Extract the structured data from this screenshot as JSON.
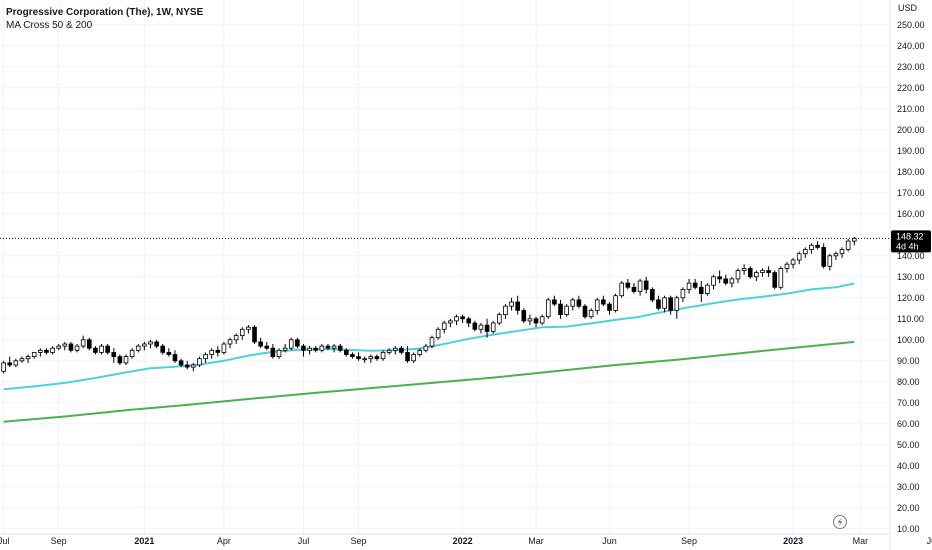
{
  "header": {
    "symbol_title": "Progressive Corporation (The), 1W, NYSE",
    "indicator": "MA Cross 50 & 200"
  },
  "price_axis": {
    "currency": "USD",
    "labels": [
      "250.00",
      "240.00",
      "230.00",
      "220.00",
      "210.00",
      "200.00",
      "190.00",
      "180.00",
      "170.00",
      "160.00",
      "150.00",
      "140.00",
      "130.00",
      "120.00",
      "110.00",
      "100.00",
      "90.00",
      "80.00",
      "70.00",
      "60.00",
      "50.00",
      "40.00",
      "30.00",
      "20.00",
      "10.00"
    ]
  },
  "last_price": {
    "value": "148.32",
    "countdown": "4d 4h",
    "price": 148.32
  },
  "colors": {
    "up_fill": "#ffffff",
    "down_fill": "#000000",
    "candle_border": "#000000",
    "ma50": "#4dd0e1",
    "ma200": "#4caf50",
    "price_tag_bg": "#000000",
    "grid": "#f0f3fa"
  },
  "icons": {
    "bottom_right": "lightning-icon"
  },
  "chart_data": {
    "type": "candlestick",
    "title": "Progressive Corporation (The), 1W, NYSE",
    "interval": "1W",
    "x_axis": {
      "labels": [
        "Jul",
        "Sep",
        "2021",
        "Apr",
        "Jul",
        "Sep",
        "2022",
        "Mar",
        "Jun",
        "Sep",
        "2023",
        "Mar",
        "Jun"
      ],
      "label_weeks": [
        0,
        9,
        23,
        36,
        49,
        58,
        75,
        87,
        99,
        112,
        129,
        140,
        152
      ]
    },
    "ylim": [
      10,
      250
    ],
    "grid": true,
    "series": [
      {
        "type": "candles",
        "ohlc": [
          [
            85,
            90,
            84,
            89
          ],
          [
            89,
            92,
            87,
            88
          ],
          [
            88,
            91,
            87,
            90
          ],
          [
            90,
            92,
            89,
            91
          ],
          [
            91,
            93,
            89,
            92
          ],
          [
            92,
            94,
            91,
            94
          ],
          [
            94,
            96,
            92,
            95
          ],
          [
            95,
            96,
            93,
            94
          ],
          [
            94,
            97,
            93,
            96
          ],
          [
            96,
            98,
            95,
            97
          ],
          [
            97,
            99,
            95,
            98
          ],
          [
            98,
            99,
            94,
            95
          ],
          [
            95,
            98,
            94,
            97
          ],
          [
            97,
            102,
            96,
            100
          ],
          [
            100,
            101,
            95,
            96
          ],
          [
            96,
            97,
            93,
            94
          ],
          [
            94,
            98,
            93,
            97
          ],
          [
            97,
            98,
            93,
            94
          ],
          [
            94,
            96,
            89,
            92
          ],
          [
            92,
            93,
            88,
            89
          ],
          [
            89,
            93,
            88,
            92
          ],
          [
            92,
            96,
            91,
            95
          ],
          [
            95,
            98,
            94,
            97
          ],
          [
            97,
            99,
            95,
            98
          ],
          [
            98,
            100,
            96,
            99
          ],
          [
            99,
            100,
            96,
            97
          ],
          [
            97,
            98,
            93,
            94
          ],
          [
            94,
            96,
            92,
            93
          ],
          [
            93,
            95,
            89,
            90
          ],
          [
            90,
            91,
            87,
            88
          ],
          [
            88,
            90,
            86,
            87
          ],
          [
            87,
            89,
            85,
            88
          ],
          [
            88,
            92,
            87,
            91
          ],
          [
            91,
            94,
            89,
            93
          ],
          [
            93,
            96,
            91,
            95
          ],
          [
            95,
            97,
            92,
            94
          ],
          [
            94,
            99,
            93,
            98
          ],
          [
            98,
            101,
            96,
            100
          ],
          [
            100,
            103,
            98,
            102
          ],
          [
            102,
            106,
            100,
            105
          ],
          [
            105,
            107,
            103,
            106
          ],
          [
            106,
            107,
            98,
            99
          ],
          [
            99,
            101,
            96,
            97
          ],
          [
            97,
            99,
            95,
            96
          ],
          [
            96,
            98,
            91,
            92
          ],
          [
            92,
            96,
            91,
            95
          ],
          [
            95,
            98,
            94,
            96
          ],
          [
            96,
            101,
            95,
            100
          ],
          [
            100,
            101,
            96,
            97
          ],
          [
            97,
            98,
            92,
            95
          ],
          [
            95,
            97,
            93,
            96
          ],
          [
            96,
            97,
            94,
            95
          ],
          [
            95,
            98,
            94,
            97
          ],
          [
            97,
            98,
            95,
            96
          ],
          [
            96,
            98,
            94,
            97
          ],
          [
            97,
            98,
            94,
            95
          ],
          [
            95,
            96,
            92,
            93
          ],
          [
            93,
            94,
            91,
            92
          ],
          [
            92,
            94,
            90,
            91
          ],
          [
            91,
            92,
            89,
            91
          ],
          [
            91,
            93,
            89,
            92
          ],
          [
            92,
            93,
            90,
            91
          ],
          [
            91,
            95,
            90,
            94
          ],
          [
            94,
            96,
            93,
            95
          ],
          [
            95,
            97,
            93,
            96
          ],
          [
            96,
            97,
            93,
            94
          ],
          [
            94,
            97,
            89,
            90
          ],
          [
            90,
            94,
            89,
            93
          ],
          [
            93,
            96,
            92,
            95
          ],
          [
            95,
            98,
            94,
            97
          ],
          [
            97,
            102,
            96,
            101
          ],
          [
            101,
            106,
            100,
            105
          ],
          [
            105,
            109,
            103,
            108
          ],
          [
            108,
            110,
            106,
            109
          ],
          [
            109,
            112,
            107,
            111
          ],
          [
            111,
            112,
            108,
            110
          ],
          [
            110,
            111,
            106,
            108
          ],
          [
            108,
            109,
            104,
            105
          ],
          [
            105,
            108,
            103,
            107
          ],
          [
            107,
            110,
            101,
            104
          ],
          [
            104,
            109,
            103,
            108
          ],
          [
            108,
            113,
            107,
            112
          ],
          [
            112,
            117,
            110,
            116
          ],
          [
            116,
            120,
            114,
            118
          ],
          [
            118,
            121,
            112,
            114
          ],
          [
            114,
            115,
            108,
            109
          ],
          [
            109,
            112,
            107,
            110
          ],
          [
            110,
            111,
            106,
            108
          ],
          [
            108,
            112,
            107,
            111
          ],
          [
            111,
            120,
            110,
            119
          ],
          [
            119,
            121,
            116,
            117
          ],
          [
            117,
            119,
            110,
            112
          ],
          [
            112,
            117,
            111,
            116
          ],
          [
            116,
            120,
            114,
            119
          ],
          [
            119,
            121,
            115,
            116
          ],
          [
            116,
            117,
            110,
            111
          ],
          [
            111,
            115,
            110,
            114
          ],
          [
            114,
            120,
            112,
            119
          ],
          [
            119,
            121,
            116,
            117
          ],
          [
            117,
            118,
            112,
            114
          ],
          [
            114,
            122,
            113,
            121
          ],
          [
            121,
            128,
            120,
            127
          ],
          [
            127,
            129,
            124,
            125
          ],
          [
            125,
            127,
            122,
            123
          ],
          [
            123,
            129,
            121,
            128
          ],
          [
            128,
            130,
            122,
            124
          ],
          [
            124,
            125,
            118,
            119
          ],
          [
            119,
            121,
            114,
            115
          ],
          [
            115,
            121,
            113,
            120
          ],
          [
            120,
            121,
            112,
            114
          ],
          [
            114,
            121,
            110,
            120
          ],
          [
            120,
            125,
            118,
            124
          ],
          [
            124,
            129,
            122,
            127
          ],
          [
            127,
            129,
            124,
            125
          ],
          [
            125,
            128,
            118,
            122
          ],
          [
            122,
            127,
            121,
            126
          ],
          [
            126,
            131,
            124,
            130
          ],
          [
            130,
            133,
            127,
            129
          ],
          [
            129,
            131,
            126,
            127
          ],
          [
            127,
            130,
            125,
            129
          ],
          [
            129,
            134,
            127,
            133
          ],
          [
            133,
            136,
            131,
            134
          ],
          [
            134,
            135,
            129,
            130
          ],
          [
            130,
            133,
            128,
            132
          ],
          [
            132,
            134,
            130,
            133
          ],
          [
            133,
            135,
            130,
            132
          ],
          [
            132,
            133,
            124,
            125
          ],
          [
            125,
            135,
            124,
            134
          ],
          [
            134,
            137,
            132,
            136
          ],
          [
            136,
            139,
            134,
            138
          ],
          [
            138,
            142,
            136,
            141
          ],
          [
            141,
            144,
            139,
            143
          ],
          [
            143,
            146,
            141,
            145
          ],
          [
            145,
            147,
            143,
            144
          ],
          [
            144,
            146,
            134,
            135
          ],
          [
            135,
            141,
            133,
            140
          ],
          [
            140,
            142,
            138,
            141
          ],
          [
            141,
            144,
            139,
            143
          ],
          [
            143,
            148,
            142,
            147
          ],
          [
            147,
            149,
            145,
            148.32
          ]
        ]
      },
      {
        "name": "MA 50",
        "type": "line",
        "points": [
          [
            0,
            76.5
          ],
          [
            5,
            77.8
          ],
          [
            10,
            79.5
          ],
          [
            15,
            81.8
          ],
          [
            20,
            84.5
          ],
          [
            24,
            86.5
          ],
          [
            28,
            87.2
          ],
          [
            32,
            88.2
          ],
          [
            36,
            90
          ],
          [
            40,
            92.5
          ],
          [
            44,
            94.3
          ],
          [
            48,
            95.2
          ],
          [
            52,
            95.6
          ],
          [
            56,
            95.3
          ],
          [
            60,
            94.8
          ],
          [
            64,
            95
          ],
          [
            68,
            95.8
          ],
          [
            72,
            98
          ],
          [
            76,
            100.5
          ],
          [
            80,
            102.5
          ],
          [
            84,
            104.2
          ],
          [
            88,
            106
          ],
          [
            92,
            106.3
          ],
          [
            96,
            107.8
          ],
          [
            100,
            109.5
          ],
          [
            104,
            111
          ],
          [
            108,
            113.5
          ],
          [
            112,
            115.5
          ],
          [
            116,
            117.5
          ],
          [
            120,
            119.2
          ],
          [
            124,
            120.5
          ],
          [
            128,
            122
          ],
          [
            132,
            124
          ],
          [
            136,
            125
          ],
          [
            139,
            126.8
          ]
        ]
      },
      {
        "name": "MA 200",
        "type": "line",
        "points": [
          [
            0,
            61
          ],
          [
            10,
            63.5
          ],
          [
            20,
            66.5
          ],
          [
            30,
            69
          ],
          [
            40,
            71.8
          ],
          [
            50,
            74.5
          ],
          [
            60,
            77
          ],
          [
            70,
            79.5
          ],
          [
            80,
            82
          ],
          [
            90,
            85
          ],
          [
            100,
            88
          ],
          [
            110,
            90.5
          ],
          [
            120,
            93.5
          ],
          [
            130,
            96.5
          ],
          [
            139,
            99
          ]
        ]
      }
    ]
  }
}
